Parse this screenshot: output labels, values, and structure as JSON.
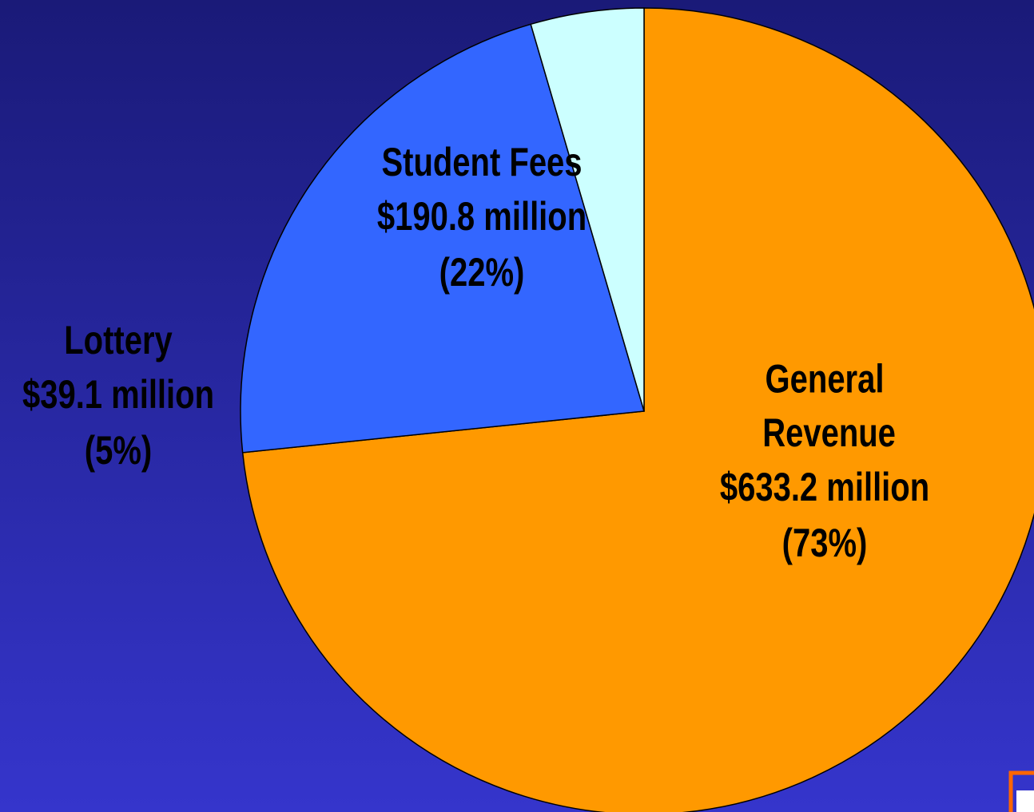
{
  "chart_data": {
    "type": "pie",
    "categories": [
      "General Revenue",
      "Student Fees",
      "Lottery"
    ],
    "values": [
      633.2,
      190.8,
      39.1
    ],
    "value_labels": [
      "$633.2 million",
      "$190.8 million",
      "$39.1 million"
    ],
    "percents": [
      73,
      22,
      5
    ],
    "percent_labels": [
      "(73%)",
      "(22%)",
      "(5%)"
    ],
    "colors": [
      "#ff9900",
      "#3366ff",
      "#ccffff"
    ]
  }
}
